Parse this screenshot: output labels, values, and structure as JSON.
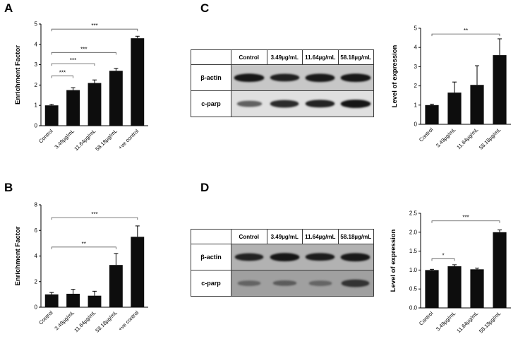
{
  "figure": {
    "background": "#ffffff",
    "bar_color": "#0d0d0d",
    "axis_color": "#000000",
    "sig_color": "#555555"
  },
  "panels": {
    "a": {
      "label": "A"
    },
    "b": {
      "label": "B"
    },
    "c": {
      "label": "C"
    },
    "d": {
      "label": "D"
    }
  },
  "blots": [
    {
      "panel": "c",
      "header": [
        "Control",
        "3.49µg/mL",
        "11.64µg/mL",
        "58.18µg/mL"
      ],
      "rows": [
        {
          "label": "β-actin",
          "bg": "#c7c7c7",
          "band_color": "#101010",
          "intensities": [
            0.95,
            0.88,
            0.92,
            0.95
          ]
        },
        {
          "label": "c-parp",
          "bg": "#e0e0e0",
          "band_color": "#151515",
          "intensities": [
            0.5,
            0.85,
            0.9,
            1.0
          ]
        }
      ]
    },
    {
      "panel": "d",
      "header": [
        "Control",
        "3.49µg/mL",
        "11.64µg/mL",
        "58.18µg/mL"
      ],
      "rows": [
        {
          "label": "β-actin",
          "bg": "#b2b2b2",
          "band_color": "#101010",
          "intensities": [
            0.85,
            0.95,
            0.9,
            0.92
          ]
        },
        {
          "label": "c-parp",
          "bg": "#a0a0a0",
          "band_color": "#202020",
          "intensities": [
            0.3,
            0.38,
            0.28,
            0.8
          ]
        }
      ]
    }
  ],
  "chart_data": [
    {
      "id": "chart-a",
      "panel": "A",
      "type": "bar",
      "title": "",
      "xlabel": "",
      "ylabel": "Enrichment Factor",
      "categories": [
        "Control",
        "3.49µg/mL",
        "11.64µg/mL",
        "58.18µg/mL",
        "+ve control"
      ],
      "values": [
        1.0,
        1.75,
        2.1,
        2.7,
        4.3
      ],
      "errors": [
        0.05,
        0.12,
        0.15,
        0.12,
        0.1
      ],
      "ylim": [
        0,
        5
      ],
      "yticks": [
        0,
        1,
        2,
        3,
        4,
        5
      ],
      "ytick_labels": [
        "0",
        "1",
        "2",
        "3",
        "4",
        "5"
      ],
      "significance": [
        {
          "a": 0,
          "b": 1,
          "label": "***",
          "y": 2.45
        },
        {
          "a": 0,
          "b": 2,
          "label": "***",
          "y": 3.05
        },
        {
          "a": 0,
          "b": 3,
          "label": "***",
          "y": 3.6
        },
        {
          "a": 0,
          "b": 4,
          "label": "***",
          "y": 4.75
        }
      ]
    },
    {
      "id": "chart-b",
      "panel": "B",
      "type": "bar",
      "title": "",
      "xlabel": "",
      "ylabel": "Enrichment Factor",
      "categories": [
        "Control",
        "3.49µg/mL",
        "11.64µg/mL",
        "58.18µg/mL",
        "+ve control"
      ],
      "values": [
        1.0,
        1.05,
        0.9,
        3.3,
        5.5
      ],
      "errors": [
        0.15,
        0.35,
        0.35,
        0.9,
        0.85
      ],
      "ylim": [
        0,
        8
      ],
      "yticks": [
        0,
        2,
        4,
        6,
        8
      ],
      "ytick_labels": [
        "0",
        "2",
        "4",
        "6",
        "8"
      ],
      "significance": [
        {
          "a": 0,
          "b": 3,
          "label": "**",
          "y": 4.7
        },
        {
          "a": 0,
          "b": 4,
          "label": "***",
          "y": 7.0
        }
      ]
    },
    {
      "id": "chart-c",
      "panel": "C",
      "type": "bar",
      "title": "",
      "xlabel": "",
      "ylabel": "Level of expression",
      "categories": [
        "Control",
        "3.49µg/mL",
        "11.64µg/mL",
        "58.18µg/mL"
      ],
      "values": [
        1.0,
        1.65,
        2.05,
        3.6
      ],
      "errors": [
        0.05,
        0.55,
        1.0,
        0.85
      ],
      "ylim": [
        0,
        5
      ],
      "yticks": [
        0,
        1,
        2,
        3,
        4,
        5
      ],
      "ytick_labels": [
        "0",
        "1",
        "2",
        "3",
        "4",
        "5"
      ],
      "significance": [
        {
          "a": 0,
          "b": 3,
          "label": "**",
          "y": 4.7
        }
      ]
    },
    {
      "id": "chart-d",
      "panel": "D",
      "type": "bar",
      "title": "",
      "xlabel": "",
      "ylabel": "Level of expression",
      "categories": [
        "Control",
        "3.49µg/mL",
        "11.64µg/mL",
        "58.18µg/mL"
      ],
      "values": [
        1.0,
        1.1,
        1.02,
        2.0
      ],
      "errors": [
        0.02,
        0.04,
        0.03,
        0.06
      ],
      "ylim": [
        0,
        2.5
      ],
      "yticks": [
        0,
        0.5,
        1.0,
        1.5,
        2.0,
        2.5
      ],
      "ytick_labels": [
        "0.0",
        "0.5",
        "1.0",
        "1.5",
        "2.0",
        "2.5"
      ],
      "significance": [
        {
          "a": 0,
          "b": 1,
          "label": "*",
          "y": 1.3
        },
        {
          "a": 0,
          "b": 3,
          "label": "***",
          "y": 2.3
        }
      ]
    }
  ]
}
